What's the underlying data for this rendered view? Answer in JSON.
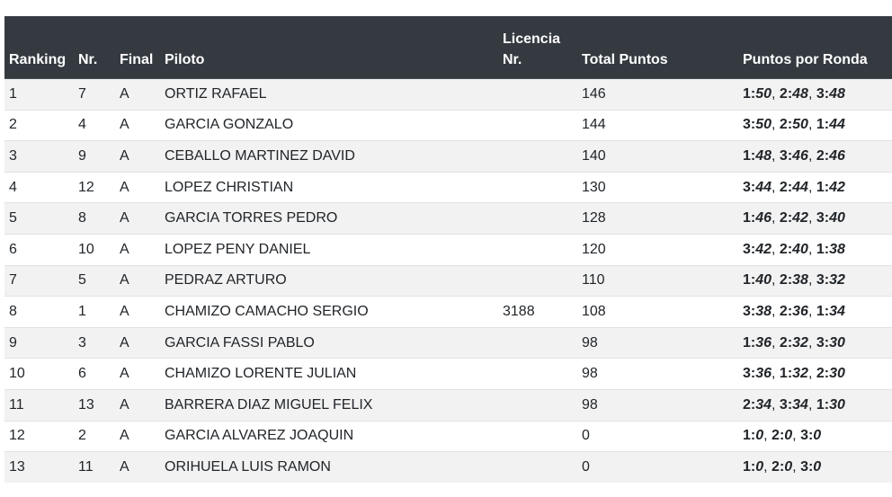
{
  "table": {
    "headers": {
      "ranking": "Ranking",
      "nr": "Nr.",
      "final": "Final",
      "piloto": "Piloto",
      "licencia_line1": "Licencia",
      "licencia_line2": "Nr.",
      "total": "Total Puntos",
      "ronda": "Puntos por Ronda"
    },
    "rows": [
      {
        "ranking": "1",
        "nr": "7",
        "final": "A",
        "piloto": "ORTIZ RAFAEL",
        "licencia": "",
        "total": "146",
        "rondas": [
          [
            "1",
            "50"
          ],
          [
            "2",
            "48"
          ],
          [
            "3",
            "48"
          ]
        ]
      },
      {
        "ranking": "2",
        "nr": "4",
        "final": "A",
        "piloto": "GARCIA GONZALO",
        "licencia": "",
        "total": "144",
        "rondas": [
          [
            "3",
            "50"
          ],
          [
            "2",
            "50"
          ],
          [
            "1",
            "44"
          ]
        ]
      },
      {
        "ranking": "3",
        "nr": "9",
        "final": "A",
        "piloto": "CEBALLO MARTINEZ DAVID",
        "licencia": "",
        "total": "140",
        "rondas": [
          [
            "1",
            "48"
          ],
          [
            "3",
            "46"
          ],
          [
            "2",
            "46"
          ]
        ]
      },
      {
        "ranking": "4",
        "nr": "12",
        "final": "A",
        "piloto": "LOPEZ CHRISTIAN",
        "licencia": "",
        "total": "130",
        "rondas": [
          [
            "3",
            "44"
          ],
          [
            "2",
            "44"
          ],
          [
            "1",
            "42"
          ]
        ]
      },
      {
        "ranking": "5",
        "nr": "8",
        "final": "A",
        "piloto": "GARCIA TORRES PEDRO",
        "licencia": "",
        "total": "128",
        "rondas": [
          [
            "1",
            "46"
          ],
          [
            "2",
            "42"
          ],
          [
            "3",
            "40"
          ]
        ]
      },
      {
        "ranking": "6",
        "nr": "10",
        "final": "A",
        "piloto": "LOPEZ PENY DANIEL",
        "licencia": "",
        "total": "120",
        "rondas": [
          [
            "3",
            "42"
          ],
          [
            "2",
            "40"
          ],
          [
            "1",
            "38"
          ]
        ]
      },
      {
        "ranking": "7",
        "nr": "5",
        "final": "A",
        "piloto": "PEDRAZ ARTURO",
        "licencia": "",
        "total": "110",
        "rondas": [
          [
            "1",
            "40"
          ],
          [
            "2",
            "38"
          ],
          [
            "3",
            "32"
          ]
        ]
      },
      {
        "ranking": "8",
        "nr": "1",
        "final": "A",
        "piloto": "CHAMIZO CAMACHO SERGIO",
        "licencia": "3188",
        "total": "108",
        "rondas": [
          [
            "3",
            "38"
          ],
          [
            "2",
            "36"
          ],
          [
            "1",
            "34"
          ]
        ]
      },
      {
        "ranking": "9",
        "nr": "3",
        "final": "A",
        "piloto": "GARCIA FASSI PABLO",
        "licencia": "",
        "total": "98",
        "rondas": [
          [
            "1",
            "36"
          ],
          [
            "2",
            "32"
          ],
          [
            "3",
            "30"
          ]
        ]
      },
      {
        "ranking": "10",
        "nr": "6",
        "final": "A",
        "piloto": "CHAMIZO LORENTE JULIAN",
        "licencia": "",
        "total": "98",
        "rondas": [
          [
            "3",
            "36"
          ],
          [
            "1",
            "32"
          ],
          [
            "2",
            "30"
          ]
        ]
      },
      {
        "ranking": "11",
        "nr": "13",
        "final": "A",
        "piloto": "BARRERA DIAZ MIGUEL FELIX",
        "licencia": "",
        "total": "98",
        "rondas": [
          [
            "2",
            "34"
          ],
          [
            "3",
            "34"
          ],
          [
            "1",
            "30"
          ]
        ]
      },
      {
        "ranking": "12",
        "nr": "2",
        "final": "A",
        "piloto": "GARCIA ALVAREZ JOAQUIN",
        "licencia": "",
        "total": "0",
        "rondas": [
          [
            "1",
            "0"
          ],
          [
            "2",
            "0"
          ],
          [
            "3",
            "0"
          ]
        ]
      },
      {
        "ranking": "13",
        "nr": "11",
        "final": "A",
        "piloto": "ORIHUELA LUIS RAMON",
        "licencia": "",
        "total": "0",
        "rondas": [
          [
            "1",
            "0"
          ],
          [
            "2",
            "0"
          ],
          [
            "3",
            "0"
          ]
        ]
      }
    ]
  },
  "colors": {
    "header_bg": "#343a40",
    "header_text": "#ffffff",
    "row_odd": "#f2f2f2",
    "row_even": "#ffffff",
    "text": "#212529"
  }
}
